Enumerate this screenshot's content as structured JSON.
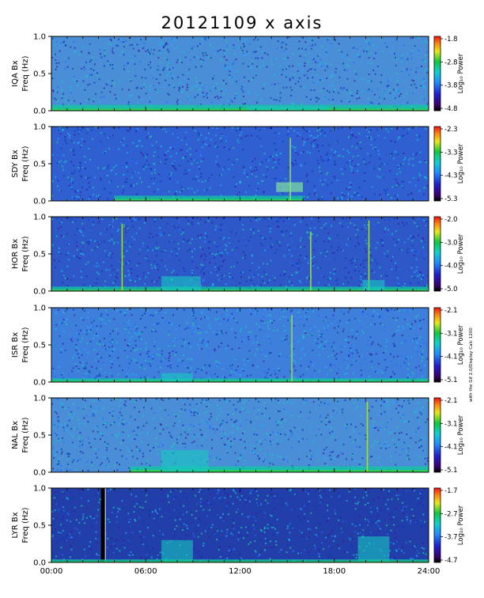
{
  "title": "20121109 x axis",
  "side_note": "with the Gif 2.0/Display Calc 1200",
  "colorbar_label": "Log₁₀ Power",
  "x_axis": {
    "ticks": [
      "00:00",
      "06:00",
      "12:00",
      "18:00",
      "24:00"
    ],
    "range_hours": [
      0,
      24
    ]
  },
  "chart_data": [
    {
      "type": "heatmap",
      "station": "IQA",
      "ylabel_station": "IQA Bx",
      "ylabel": "Freq (Hz)",
      "yticks": [
        "1.0",
        "0.5",
        "0.0"
      ],
      "ylim": [
        0,
        1.0
      ],
      "colorbar_ticks": [
        "-1.8",
        "-2.8",
        "-3.8",
        "-4.8"
      ],
      "colorbar_range": [
        -4.8,
        -1.8
      ],
      "background_color": "#4a8ed8",
      "features": [
        {
          "kind": "low-frequency band",
          "t0": 0,
          "t1": 24,
          "fmax": 0.08
        },
        {
          "kind": "enhancement",
          "t0": 12.5,
          "t1": 17.5,
          "fmax": 0.06
        }
      ]
    },
    {
      "type": "heatmap",
      "station": "SDY",
      "ylabel_station": "SDY Bx",
      "ylabel": "Freq (Hz)",
      "yticks": [
        "1.0",
        "0.5",
        "0.0"
      ],
      "ylim": [
        0,
        1.0
      ],
      "colorbar_ticks": [
        "-2.3",
        "-3.3",
        "-4.3",
        "-5.3"
      ],
      "colorbar_range": [
        -5.3,
        -2.3
      ],
      "background_color": "#2f5fd0",
      "features": [
        {
          "kind": "low-frequency band",
          "t0": 4,
          "t1": 16,
          "fmax": 0.07
        },
        {
          "kind": "spike",
          "t": 15.2,
          "fmax": 0.85
        },
        {
          "kind": "patch",
          "t0": 14.3,
          "t1": 16.0,
          "fmin": 0.12,
          "fmax": 0.25
        }
      ]
    },
    {
      "type": "heatmap",
      "station": "HOR",
      "ylabel_station": "HOR Bx",
      "ylabel": "Freq (Hz)",
      "yticks": [
        "1.0",
        "0.5",
        "0.0"
      ],
      "ylim": [
        0,
        1.0
      ],
      "colorbar_ticks": [
        "-2.0",
        "-3.0",
        "-4.0",
        "-5.0"
      ],
      "colorbar_range": [
        -5.0,
        -2.0
      ],
      "background_color": "#2e58c8",
      "features": [
        {
          "kind": "low-frequency band",
          "t0": 0,
          "t1": 24,
          "fmax": 0.06
        },
        {
          "kind": "spike",
          "t": 4.5,
          "fmax": 0.9
        },
        {
          "kind": "spike",
          "t": 16.5,
          "fmax": 0.8
        },
        {
          "kind": "spike",
          "t": 20.2,
          "fmax": 0.95
        },
        {
          "kind": "enhancement",
          "t0": 7,
          "t1": 9.5,
          "fmax": 0.2
        },
        {
          "kind": "enhancement",
          "t0": 19.8,
          "t1": 21.2,
          "fmax": 0.15
        }
      ]
    },
    {
      "type": "heatmap",
      "station": "ISR",
      "ylabel_station": "ISR Bx",
      "ylabel": "Freq (Hz)",
      "yticks": [
        "1.0",
        "0.5",
        "0.0"
      ],
      "ylim": [
        0,
        1.0
      ],
      "colorbar_ticks": [
        "-2.1",
        "-3.1",
        "-4.1",
        "-5.1"
      ],
      "colorbar_range": [
        -5.1,
        -2.1
      ],
      "background_color": "#3f7fdc",
      "features": [
        {
          "kind": "low-frequency band",
          "t0": 0,
          "t1": 24,
          "fmax": 0.05
        },
        {
          "kind": "spike",
          "t": 15.3,
          "fmax": 0.9
        },
        {
          "kind": "enhancement",
          "t0": 7,
          "t1": 9,
          "fmax": 0.12
        }
      ]
    },
    {
      "type": "heatmap",
      "station": "NAL",
      "ylabel_station": "NAL Bx",
      "ylabel": "Freq (Hz)",
      "yticks": [
        "1.0",
        "0.5",
        "0.0"
      ],
      "ylim": [
        0,
        1.0
      ],
      "colorbar_ticks": [
        "-2.1",
        "-3.1",
        "-4.1",
        "-5.1"
      ],
      "colorbar_range": [
        -5.1,
        -2.1
      ],
      "background_color": "#4a8ed8",
      "features": [
        {
          "kind": "low-frequency band",
          "t0": 5,
          "t1": 24,
          "fmax": 0.08
        },
        {
          "kind": "spike",
          "t": 20.1,
          "fmax": 0.95
        },
        {
          "kind": "enhancement",
          "t0": 7,
          "t1": 10,
          "fmax": 0.3
        }
      ]
    },
    {
      "type": "heatmap",
      "station": "LYR",
      "ylabel_station": "LYR Bx",
      "ylabel": "Freq (Hz)",
      "yticks": [
        "1.0",
        "0.5",
        "0.0"
      ],
      "ylim": [
        0,
        1.0
      ],
      "colorbar_ticks": [
        "-1.7",
        "-2.7",
        "-3.7",
        "-4.7"
      ],
      "colorbar_range": [
        -4.7,
        -1.7
      ],
      "background_color": "#223ea8",
      "features": [
        {
          "kind": "data gap",
          "t0": 3.15,
          "t1": 3.45
        },
        {
          "kind": "enhancement",
          "t0": 7,
          "t1": 9,
          "fmax": 0.3
        },
        {
          "kind": "enhancement",
          "t0": 19.5,
          "t1": 21.5,
          "fmax": 0.35
        },
        {
          "kind": "low-frequency band",
          "t0": 0,
          "t1": 24,
          "fmax": 0.04
        }
      ]
    }
  ]
}
